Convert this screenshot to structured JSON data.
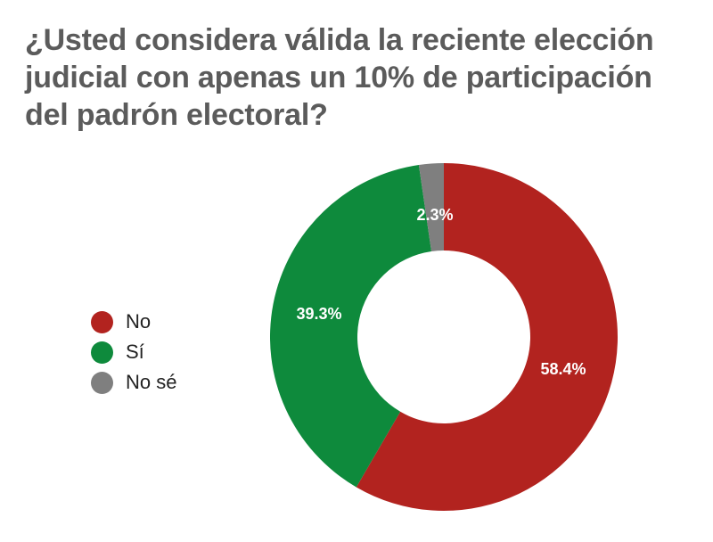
{
  "chart_data": {
    "type": "pie",
    "variant": "donut",
    "title": "¿Usted considera válida la reciente elección judicial con apenas un 10% de participación del padrón electoral?",
    "slices": [
      {
        "label": "No",
        "value": 58.4,
        "display": "58.4%",
        "color": "#b2231f"
      },
      {
        "label": "Sí",
        "value": 39.3,
        "display": "39.3%",
        "color": "#0e8a3c"
      },
      {
        "label": "No sé",
        "value": 2.3,
        "display": "2.3%",
        "color": "#7f7f7f"
      }
    ],
    "legend_position": "left"
  }
}
